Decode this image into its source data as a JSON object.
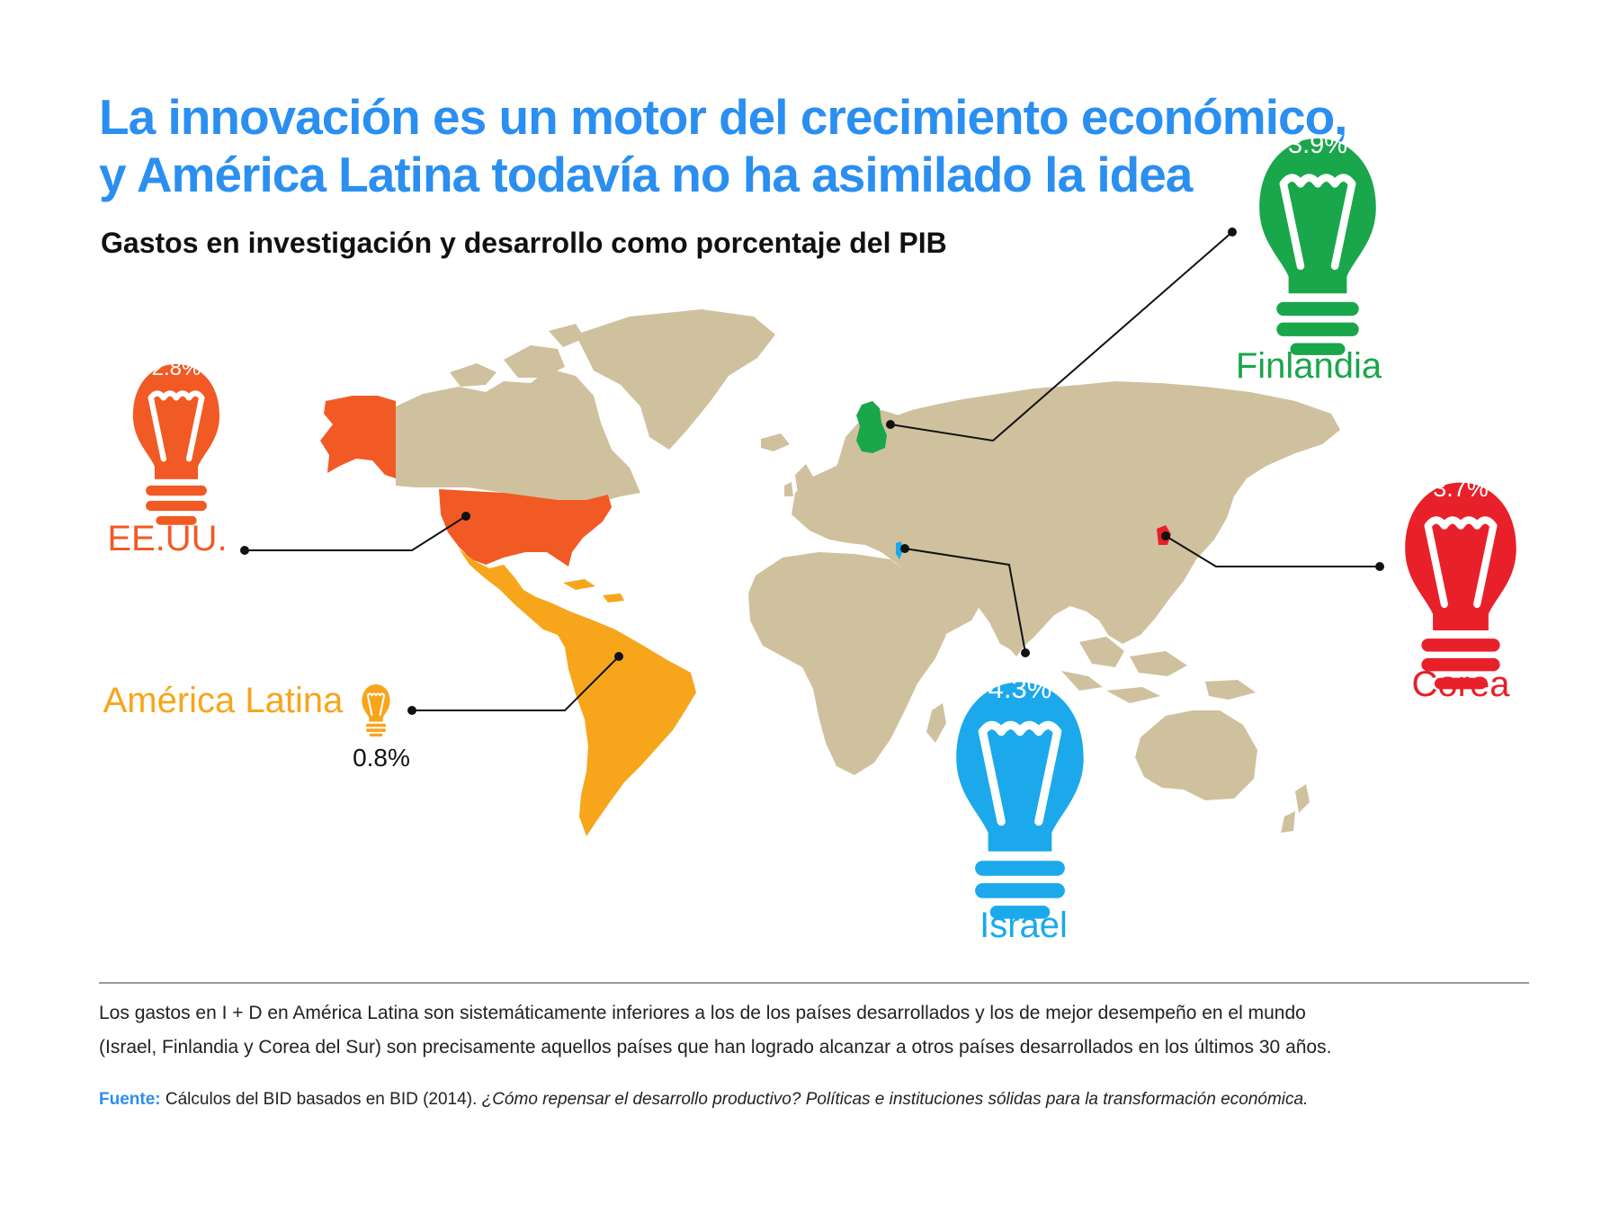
{
  "title": {
    "line1": "La innovación es un motor del crecimiento económico,",
    "line2": "y América Latina todavía no ha asimilado la idea"
  },
  "subtitle": "Gastos en investigación y desarrollo como porcentaje del PIB",
  "colors": {
    "usa": "#f15a24",
    "latam": "#f7a51b",
    "finland": "#1aa64b",
    "israel": "#1ba9ec",
    "korea": "#e8202a",
    "land": "#cfc19e",
    "title": "#2a8ff0"
  },
  "chart_data": {
    "type": "map",
    "value_unit": "%",
    "regions": [
      {
        "name": "EE.UU.",
        "value": 2.8,
        "label": "2.8%",
        "color": "#f15a24"
      },
      {
        "name": "América Latina",
        "value": 0.8,
        "label": "0.8%",
        "color": "#f7a51b"
      },
      {
        "name": "Finlandia",
        "value": 3.9,
        "label": "3.9%",
        "color": "#1aa64b"
      },
      {
        "name": "Israel",
        "value": 4.3,
        "label": "4.3%",
        "color": "#1ba9ec"
      },
      {
        "name": "Corea",
        "value": 3.7,
        "label": "3.7%",
        "color": "#e8202a"
      }
    ]
  },
  "note": {
    "line1": "Los gastos en I + D en América Latina son sistemáticamente inferiores a los de los países desarrollados y los de mejor desempeño en el mundo",
    "line2": "(Israel, Finlandia y Corea del Sur) son precisamente aquellos países que han logrado alcanzar a otros países desarrollados en los últimos 30 años."
  },
  "source": {
    "label": "Fuente:",
    "text": "Cálculos del BID basados en BID (2014).",
    "italic": "¿Cómo repensar el desarrollo productivo? Políticas e instituciones sólidas para la transformación económica."
  }
}
